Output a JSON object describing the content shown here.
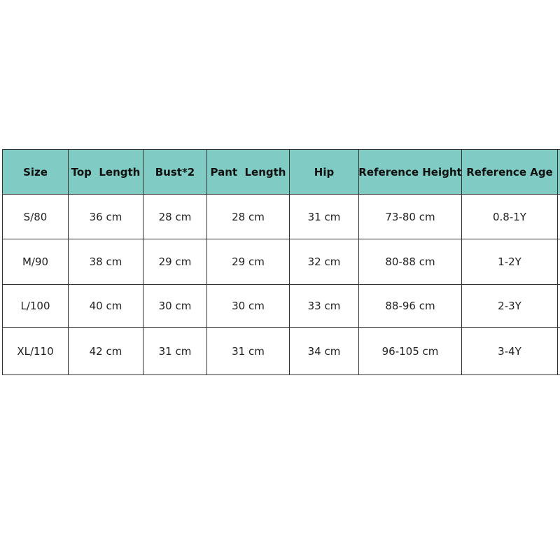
{
  "table": {
    "header": [
      "Size",
      "Top  Length",
      "Bust*2",
      "Pant  Length",
      "Hip",
      "Reference Height",
      "Reference Age"
    ],
    "rows": [
      [
        "S/80",
        "36 cm",
        "28 cm",
        "28 cm",
        "31 cm",
        "73-80 cm",
        "0.8-1Y"
      ],
      [
        "M/90",
        "38 cm",
        "29 cm",
        "29 cm",
        "32 cm",
        "80-88 cm",
        "1-2Y"
      ],
      [
        "L/100",
        "40 cm",
        "30 cm",
        "30 cm",
        "33 cm",
        "88-96 cm",
        "2-3Y"
      ],
      [
        "XL/110",
        "42 cm",
        "31 cm",
        "31 cm",
        "34 cm",
        "96-105 cm",
        "3-4Y"
      ]
    ]
  }
}
